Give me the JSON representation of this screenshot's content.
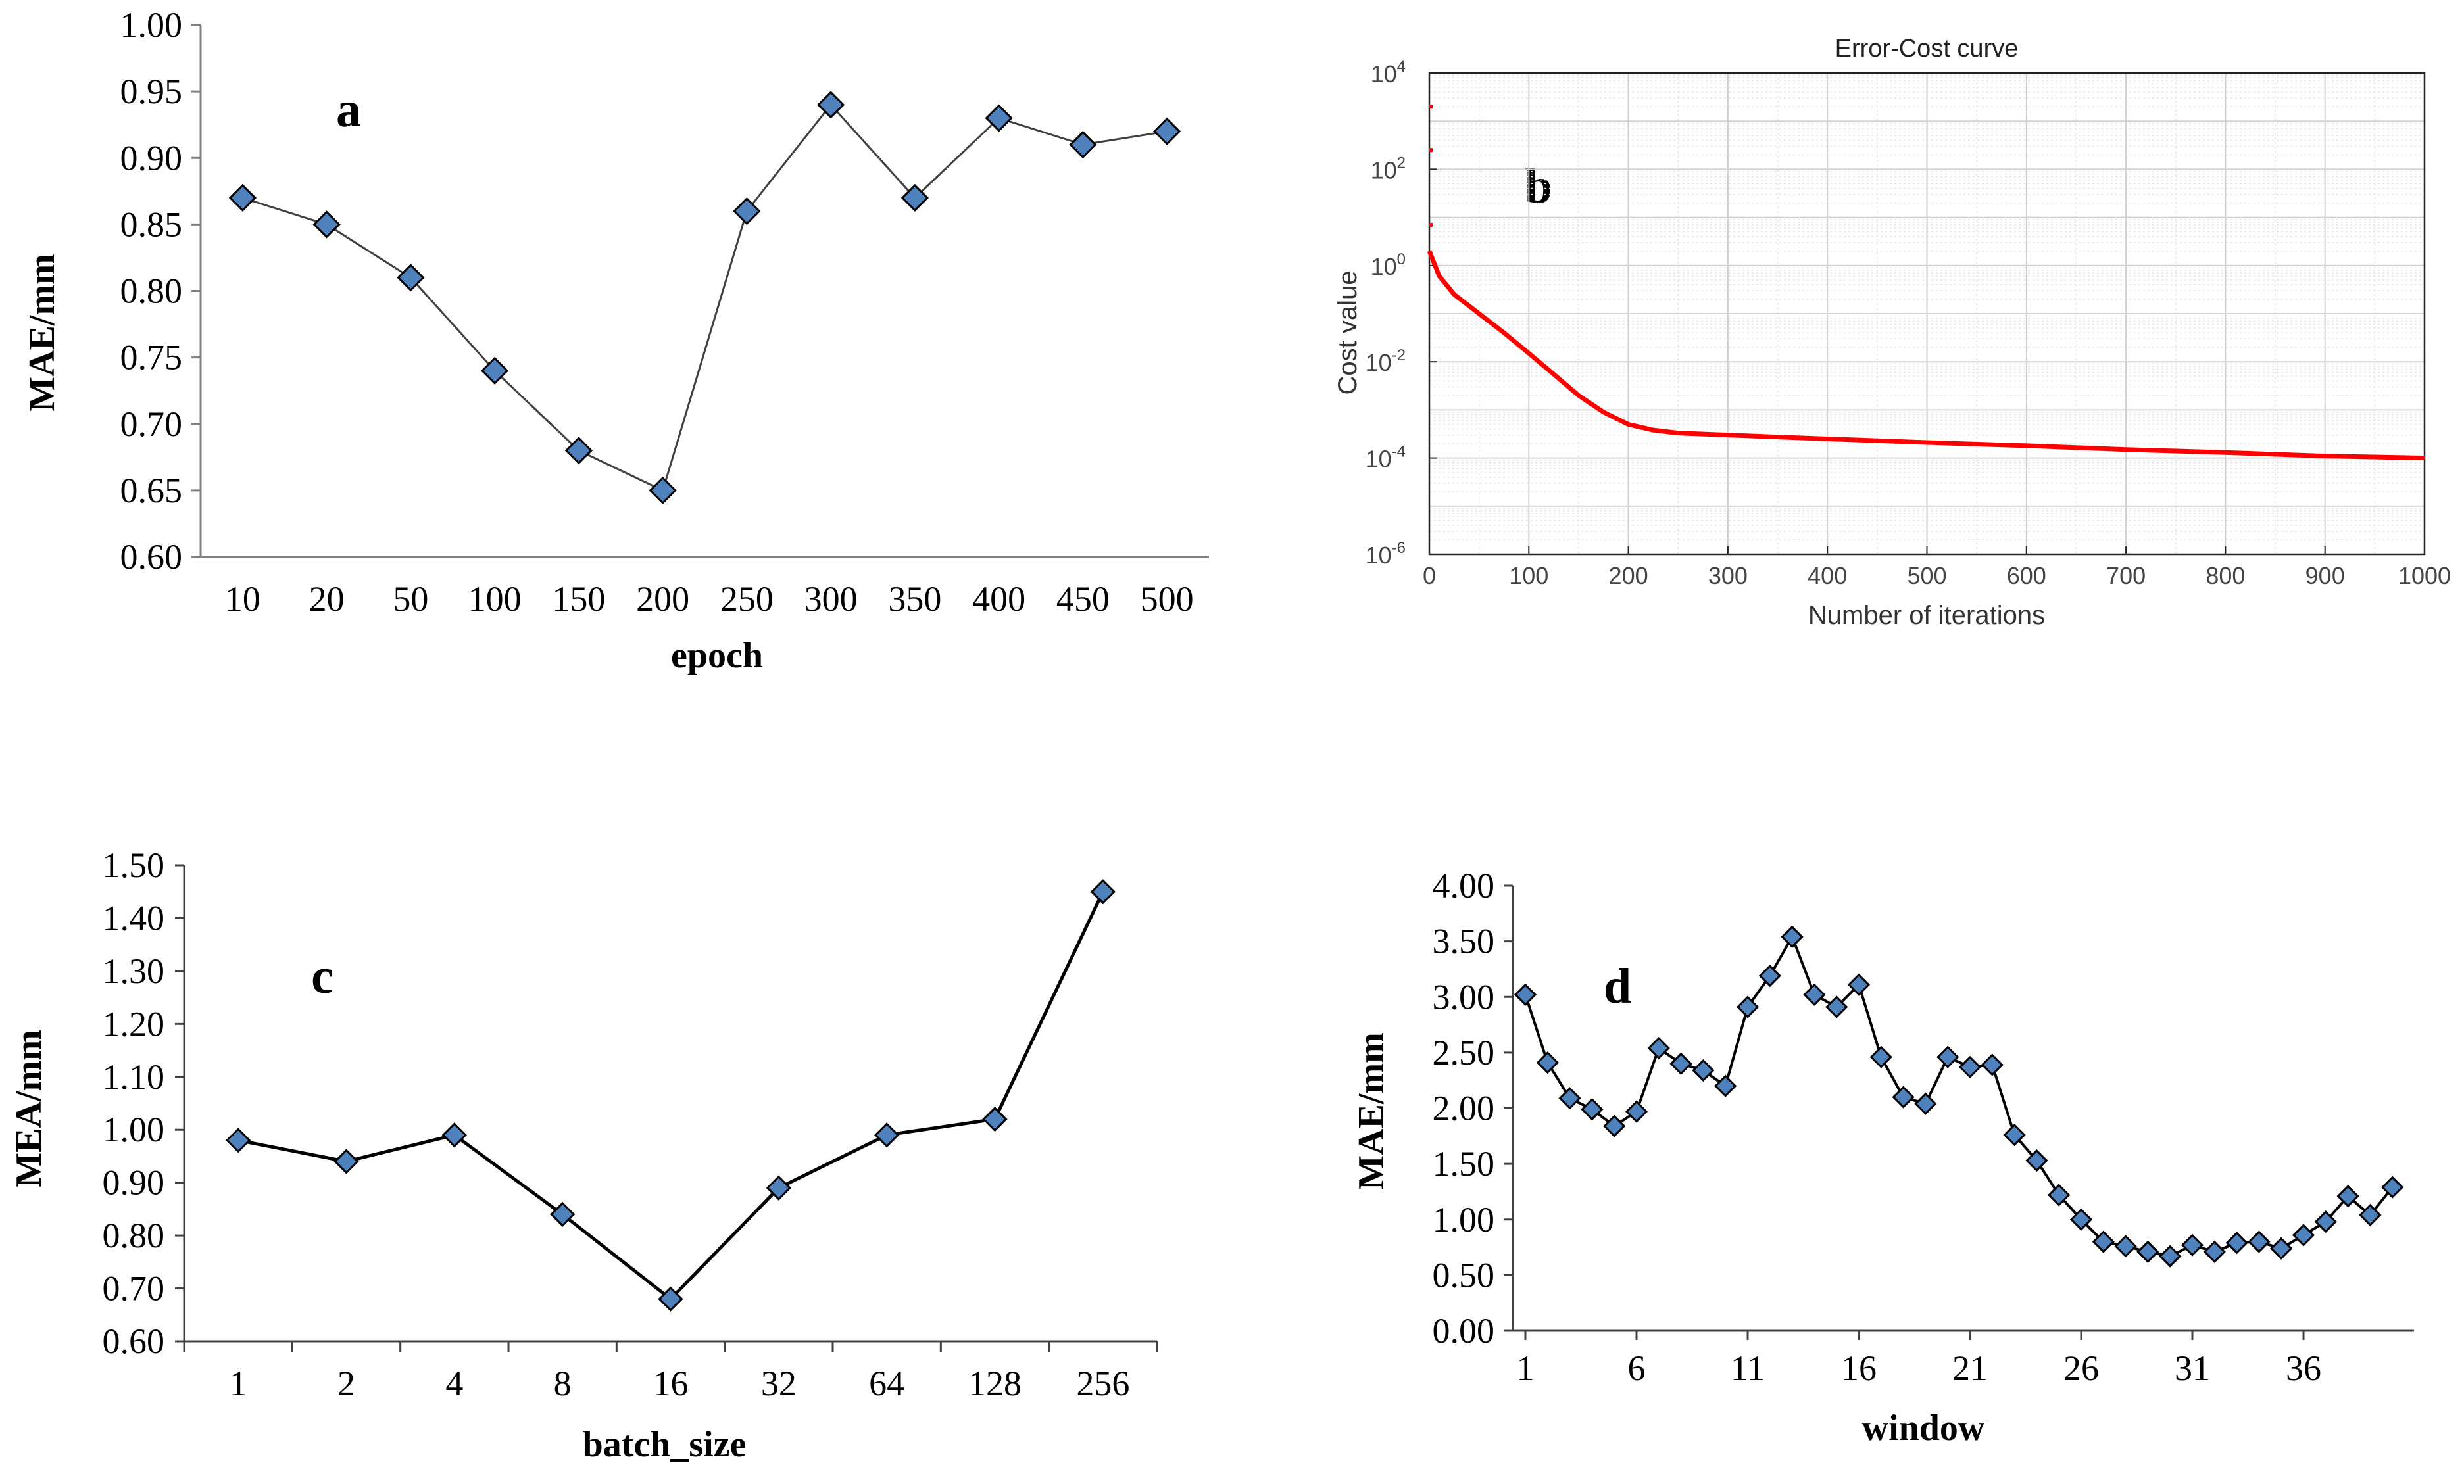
{
  "chart_data": [
    {
      "id": "a",
      "type": "line",
      "panel_label": "a",
      "title": "",
      "xlabel": "epoch",
      "ylabel": "MAE/mm",
      "categories": [
        "10",
        "20",
        "50",
        "100",
        "150",
        "200",
        "250",
        "300",
        "350",
        "400",
        "450",
        "500"
      ],
      "values": [
        0.87,
        0.85,
        0.81,
        0.74,
        0.68,
        0.65,
        0.86,
        0.94,
        0.87,
        0.93,
        0.91,
        0.92
      ],
      "ylim": [
        0.6,
        1.0
      ],
      "yticks": [
        "0.60",
        "0.65",
        "0.70",
        "0.75",
        "0.80",
        "0.85",
        "0.90",
        "0.95",
        "1.00"
      ],
      "marker": "diamond",
      "marker_color": "#4F81BD",
      "line_color": "#404040",
      "grid": false
    },
    {
      "id": "b",
      "type": "line",
      "panel_label": "b",
      "title": "Error-Cost curve",
      "xlabel": "Number of iterations",
      "ylabel": "Cost value",
      "yscale": "log",
      "xlim": [
        0,
        1000
      ],
      "xticks": [
        "0",
        "100",
        "200",
        "300",
        "400",
        "500",
        "600",
        "700",
        "800",
        "900",
        "1000"
      ],
      "yticks": [
        {
          "base": "10",
          "exp": "-6"
        },
        {
          "base": "10",
          "exp": "-4"
        },
        {
          "base": "10",
          "exp": "-2"
        },
        {
          "base": "10",
          "exp": "0"
        },
        {
          "base": "10",
          "exp": "2"
        },
        {
          "base": "10",
          "exp": "4"
        }
      ],
      "ylim_exp": [
        -6,
        4
      ],
      "x": [
        0,
        10,
        25,
        50,
        75,
        100,
        125,
        150,
        175,
        200,
        225,
        250,
        300,
        400,
        500,
        600,
        700,
        800,
        900,
        1000
      ],
      "y": [
        2,
        0.6,
        0.25,
        0.1,
        0.04,
        0.015,
        0.0055,
        0.002,
        0.0009,
        0.0005,
        0.00038,
        0.00033,
        0.0003,
        0.00025,
        0.00021,
        0.00018,
        0.00015,
        0.00013,
        0.00011,
        0.0001
      ],
      "outliers": [
        {
          "x": 0,
          "y": 2000
        },
        {
          "x": 0,
          "y": 250
        },
        {
          "x": 0,
          "y": 7
        }
      ],
      "line_color": "#FF0000",
      "grid": true
    },
    {
      "id": "c",
      "type": "line",
      "panel_label": "c",
      "title": "",
      "xlabel": "batch_size",
      "ylabel": "MEA/mm",
      "categories": [
        "1",
        "2",
        "4",
        "8",
        "16",
        "32",
        "64",
        "128",
        "256"
      ],
      "values": [
        0.98,
        0.94,
        0.99,
        0.84,
        0.68,
        0.89,
        0.99,
        1.02,
        1.45
      ],
      "ylim": [
        0.6,
        1.5
      ],
      "yticks": [
        "0.60",
        "0.70",
        "0.80",
        "0.90",
        "1.00",
        "1.10",
        "1.20",
        "1.30",
        "1.40",
        "1.50"
      ],
      "marker": "diamond",
      "marker_color": "#4F81BD",
      "line_color": "#000000",
      "grid": false
    },
    {
      "id": "d",
      "type": "line",
      "panel_label": "d",
      "title": "",
      "xlabel": "window",
      "ylabel": "MAE/mm",
      "x": [
        1,
        2,
        3,
        4,
        5,
        6,
        7,
        8,
        9,
        10,
        11,
        12,
        13,
        14,
        15,
        16,
        17,
        18,
        19,
        20,
        21,
        22,
        23,
        24,
        25,
        26,
        27,
        28,
        29,
        30,
        31,
        32,
        33,
        34,
        35,
        36,
        37,
        38,
        39,
        40
      ],
      "values": [
        3.02,
        2.41,
        2.09,
        1.99,
        1.84,
        1.97,
        2.54,
        2.4,
        2.34,
        2.2,
        2.91,
        3.19,
        3.54,
        3.02,
        2.91,
        3.11,
        2.46,
        2.1,
        2.04,
        2.46,
        2.37,
        2.39,
        1.76,
        1.53,
        1.22,
        1.0,
        0.8,
        0.76,
        0.71,
        0.67,
        0.77,
        0.71,
        0.79,
        0.8,
        0.74,
        0.86,
        0.98,
        1.21,
        1.04,
        1.29
      ],
      "xticks": [
        "1",
        "6",
        "11",
        "16",
        "21",
        "26",
        "31",
        "36"
      ],
      "xtick_values": [
        1,
        6,
        11,
        16,
        21,
        26,
        31,
        36
      ],
      "ylim": [
        0.0,
        4.0
      ],
      "yticks": [
        "0.00",
        "0.50",
        "1.00",
        "1.50",
        "2.00",
        "2.50",
        "3.00",
        "3.50",
        "4.00"
      ],
      "marker": "diamond",
      "marker_color": "#4F81BD",
      "line_color": "#000000",
      "grid": false
    }
  ]
}
